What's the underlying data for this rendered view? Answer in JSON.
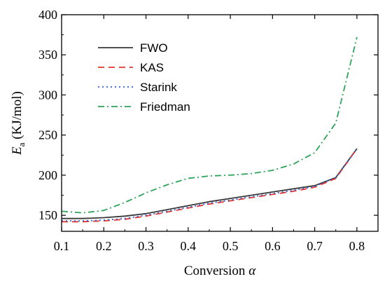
{
  "chart_data": {
    "type": "line",
    "xlabel": {
      "main": "Conversion ",
      "symbol": "α"
    },
    "ylabel": {
      "main": "E",
      "sub": "a",
      "rest": " (KJ/mol)"
    },
    "xlim": [
      0.1,
      0.85
    ],
    "ylim": [
      130,
      400
    ],
    "xticks": [
      0.1,
      0.2,
      0.3,
      0.4,
      0.5,
      0.6,
      0.7,
      0.8
    ],
    "xtick_labels": [
      "0.1",
      "0.2",
      "0.3",
      "0.4",
      "0.5",
      "0.6",
      "0.7",
      "0.8"
    ],
    "yticks": [
      150,
      200,
      250,
      300,
      350,
      400
    ],
    "ytick_labels": [
      "150",
      "200",
      "250",
      "300",
      "350",
      "400"
    ],
    "legend_position": "top-left",
    "grid": false,
    "series": [
      {
        "name": "FWO",
        "color": "#3a3a3a",
        "dash": "solid",
        "x": [
          0.1,
          0.15,
          0.2,
          0.25,
          0.3,
          0.35,
          0.4,
          0.45,
          0.5,
          0.55,
          0.6,
          0.65,
          0.7,
          0.75,
          0.8
        ],
        "y": [
          146,
          146,
          147,
          149,
          152,
          157,
          162,
          167,
          171,
          175,
          179,
          183,
          187,
          197,
          233
        ]
      },
      {
        "name": "KAS",
        "color": "#e8352c",
        "dash": "dashed",
        "x": [
          0.1,
          0.15,
          0.2,
          0.25,
          0.3,
          0.35,
          0.4,
          0.45,
          0.5,
          0.55,
          0.6,
          0.65,
          0.7,
          0.75,
          0.8
        ],
        "y": [
          142,
          142,
          143,
          145,
          149,
          154,
          159,
          164,
          168,
          172,
          176,
          180,
          185,
          196,
          233
        ]
      },
      {
        "name": "Starink",
        "color": "#2f5fd0",
        "dash": "dotted",
        "x": [
          0.1,
          0.15,
          0.2,
          0.25,
          0.3,
          0.35,
          0.4,
          0.45,
          0.5,
          0.55,
          0.6,
          0.65,
          0.7,
          0.75,
          0.8
        ],
        "y": [
          143,
          143,
          144,
          146,
          150,
          155,
          160,
          165,
          169,
          173,
          177,
          181,
          186,
          197,
          233
        ]
      },
      {
        "name": "Friedman",
        "color": "#2ea35a",
        "dash": "dashdot",
        "x": [
          0.1,
          0.15,
          0.2,
          0.25,
          0.3,
          0.35,
          0.4,
          0.45,
          0.5,
          0.55,
          0.6,
          0.65,
          0.7,
          0.75,
          0.8
        ],
        "y": [
          155,
          153,
          156,
          166,
          178,
          188,
          196,
          199,
          200,
          202,
          206,
          214,
          228,
          265,
          372
        ]
      }
    ]
  }
}
